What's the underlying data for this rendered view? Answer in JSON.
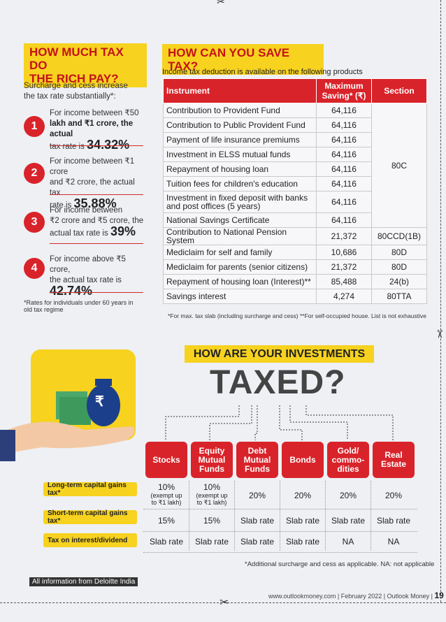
{
  "left": {
    "title_line1": "HOW MUCH TAX DO",
    "title_line2": "THE RICH PAY?",
    "intro": "Surcharge and cess increase the tax rate substantially*:",
    "items": [
      {
        "num": "1",
        "text_a": "For income between ₹50",
        "text_b": "lakh and ₹1 crore, the actual",
        "text_c": "tax rate is",
        "rate": "34.32%"
      },
      {
        "num": "2",
        "text_a": "For income between ₹1 crore",
        "text_b": "and ₹2 crore, the actual tax",
        "text_c": "rate is",
        "rate": "35.88%"
      },
      {
        "num": "3",
        "text_a": "For income between",
        "text_b": "₹2 crore and ₹5 crore, the",
        "text_c": "actual tax rate is",
        "rate": "39%"
      },
      {
        "num": "4",
        "text_a": "For income above ₹5 crore,",
        "text_b": "the actual tax rate is",
        "text_c": "",
        "rate": "42.74%"
      }
    ],
    "footnote": "*Rates for individuals under 60 years in old tax regime"
  },
  "right": {
    "title": "HOW CAN YOU SAVE TAX?",
    "subtitle": "Income tax deduction is available on the following products",
    "headers": {
      "instrument": "Instrument",
      "max_line1": "Maximum",
      "max_line2": "Saving* (₹)",
      "section": "Section"
    },
    "rows": [
      {
        "instrument": "Contribution to Provident Fund",
        "saving": "64,116"
      },
      {
        "instrument": "Contribution to Public Provident Fund",
        "saving": "64,116"
      },
      {
        "instrument": "Payment of life insurance premiums",
        "saving": "64,116"
      },
      {
        "instrument": "Investment in ELSS mutual funds",
        "saving": "64,116"
      },
      {
        "instrument": "Repayment of housing loan",
        "saving": "64,116"
      },
      {
        "instrument": "Tuition fees for children's education",
        "saving": "64,116"
      },
      {
        "instrument": "Investment in fixed deposit with banks and post offices (5 years)",
        "saving": "64,116"
      },
      {
        "instrument": "National Savings Certificate",
        "saving": "64,116"
      },
      {
        "instrument": "Contribution to National Pension System",
        "saving": "21,372",
        "section": "80CCD(1B)"
      },
      {
        "instrument": "Mediclaim for self and family",
        "saving": "10,686",
        "section": "80D"
      },
      {
        "instrument": "Mediclaim for parents (senior citizens)",
        "saving": "21,372",
        "section": "80D"
      },
      {
        "instrument": "Repayment of housing loan (Interest)**",
        "saving": "85,488",
        "section": "24(b)"
      },
      {
        "instrument": "Savings interest",
        "saving": "4,274",
        "section": "80TTA"
      }
    ],
    "section_merged": "80C",
    "footnote": "*For max. tax slab (including surcharge and cess) **For self-occupied house. List is not exhaustive"
  },
  "bottom": {
    "banner": "HOW ARE YOUR INVESTMENTS",
    "taxed": "TAXED?",
    "categories": [
      {
        "l1": "Stocks",
        "l2": "",
        "l3": ""
      },
      {
        "l1": "Equity",
        "l2": "Mutual",
        "l3": "Funds"
      },
      {
        "l1": "Debt",
        "l2": "Mutual",
        "l3": "Funds"
      },
      {
        "l1": "Bonds",
        "l2": "",
        "l3": ""
      },
      {
        "l1": "Gold/",
        "l2": "commo-",
        "l3": "dities"
      },
      {
        "l1": "Real",
        "l2": "Estate",
        "l3": ""
      }
    ],
    "row_labels": [
      "Long-term capital gains tax*",
      "Short-term capital gains tax*",
      "Tax on interest/dividend"
    ],
    "ltcg": [
      {
        "v": "10%",
        "s1": "(exempt up",
        "s2": "to ₹1 lakh)"
      },
      {
        "v": "10%",
        "s1": "(exempt up",
        "s2": "to ₹1 lakh)"
      },
      {
        "v": "20%",
        "s1": "",
        "s2": ""
      },
      {
        "v": "20%",
        "s1": "",
        "s2": ""
      },
      {
        "v": "20%",
        "s1": "",
        "s2": ""
      },
      {
        "v": "20%",
        "s1": "",
        "s2": ""
      }
    ],
    "stcg": [
      "15%",
      "15%",
      "Slab rate",
      "Slab rate",
      "Slab rate",
      "Slab rate"
    ],
    "interest": [
      "Slab rate",
      "Slab rate",
      "Slab rate",
      "Slab rate",
      "NA",
      "NA"
    ],
    "footnote": "*Additional surcharge and cess as applicable. NA: not applicable",
    "source": "All information from Deloitte India",
    "folio_url": "www.outlookmoney.com",
    "folio_date": "February 2022",
    "folio_mag": "Outlook Money",
    "folio_page": "19",
    "rupee_symbol": "₹"
  },
  "colors": {
    "red": "#d9232a",
    "yellow": "#f7d21f"
  }
}
